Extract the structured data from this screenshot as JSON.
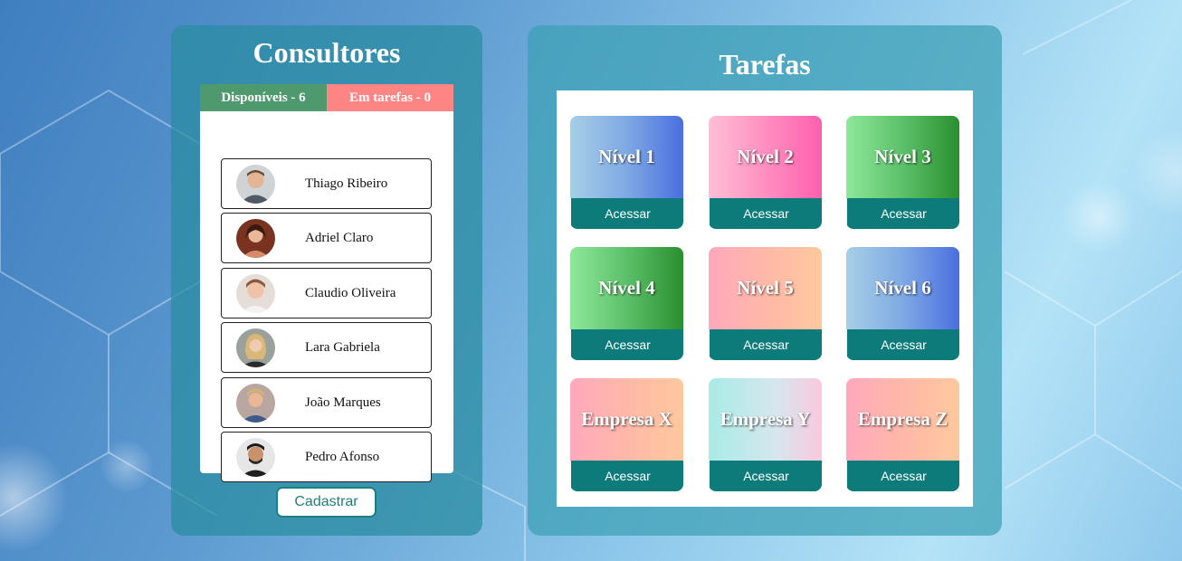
{
  "consultants_panel": {
    "title": "Consultores",
    "tab_available": "Disponíveis - 6",
    "tab_busy": "Em tarefas - 0",
    "consultants": [
      {
        "name": "Thiago Ribeiro"
      },
      {
        "name": "Adriel Claro"
      },
      {
        "name": "Claudio Oliveira"
      },
      {
        "name": "Lara Gabriela"
      },
      {
        "name": "João Marques"
      },
      {
        "name": "Pedro Afonso"
      }
    ],
    "register_label": "Cadastrar"
  },
  "tasks_panel": {
    "title": "Tarefas",
    "cards": [
      {
        "title": "Nível 1",
        "button": "Acessar"
      },
      {
        "title": "Nível 2",
        "button": "Acessar"
      },
      {
        "title": "Nível 3",
        "button": "Acessar"
      },
      {
        "title": "Nível 4",
        "button": "Acessar"
      },
      {
        "title": "Nível 5",
        "button": "Acessar"
      },
      {
        "title": "Nível 6",
        "button": "Acessar"
      },
      {
        "title": "Empresa X",
        "button": "Acessar"
      },
      {
        "title": "Empresa Y",
        "button": "Acessar"
      },
      {
        "title": "Empresa Z",
        "button": "Acessar"
      }
    ]
  },
  "colors": {
    "tab_available": "#4e9a6e",
    "tab_busy": "#ff8585",
    "button_teal": "#0e7b7b"
  }
}
